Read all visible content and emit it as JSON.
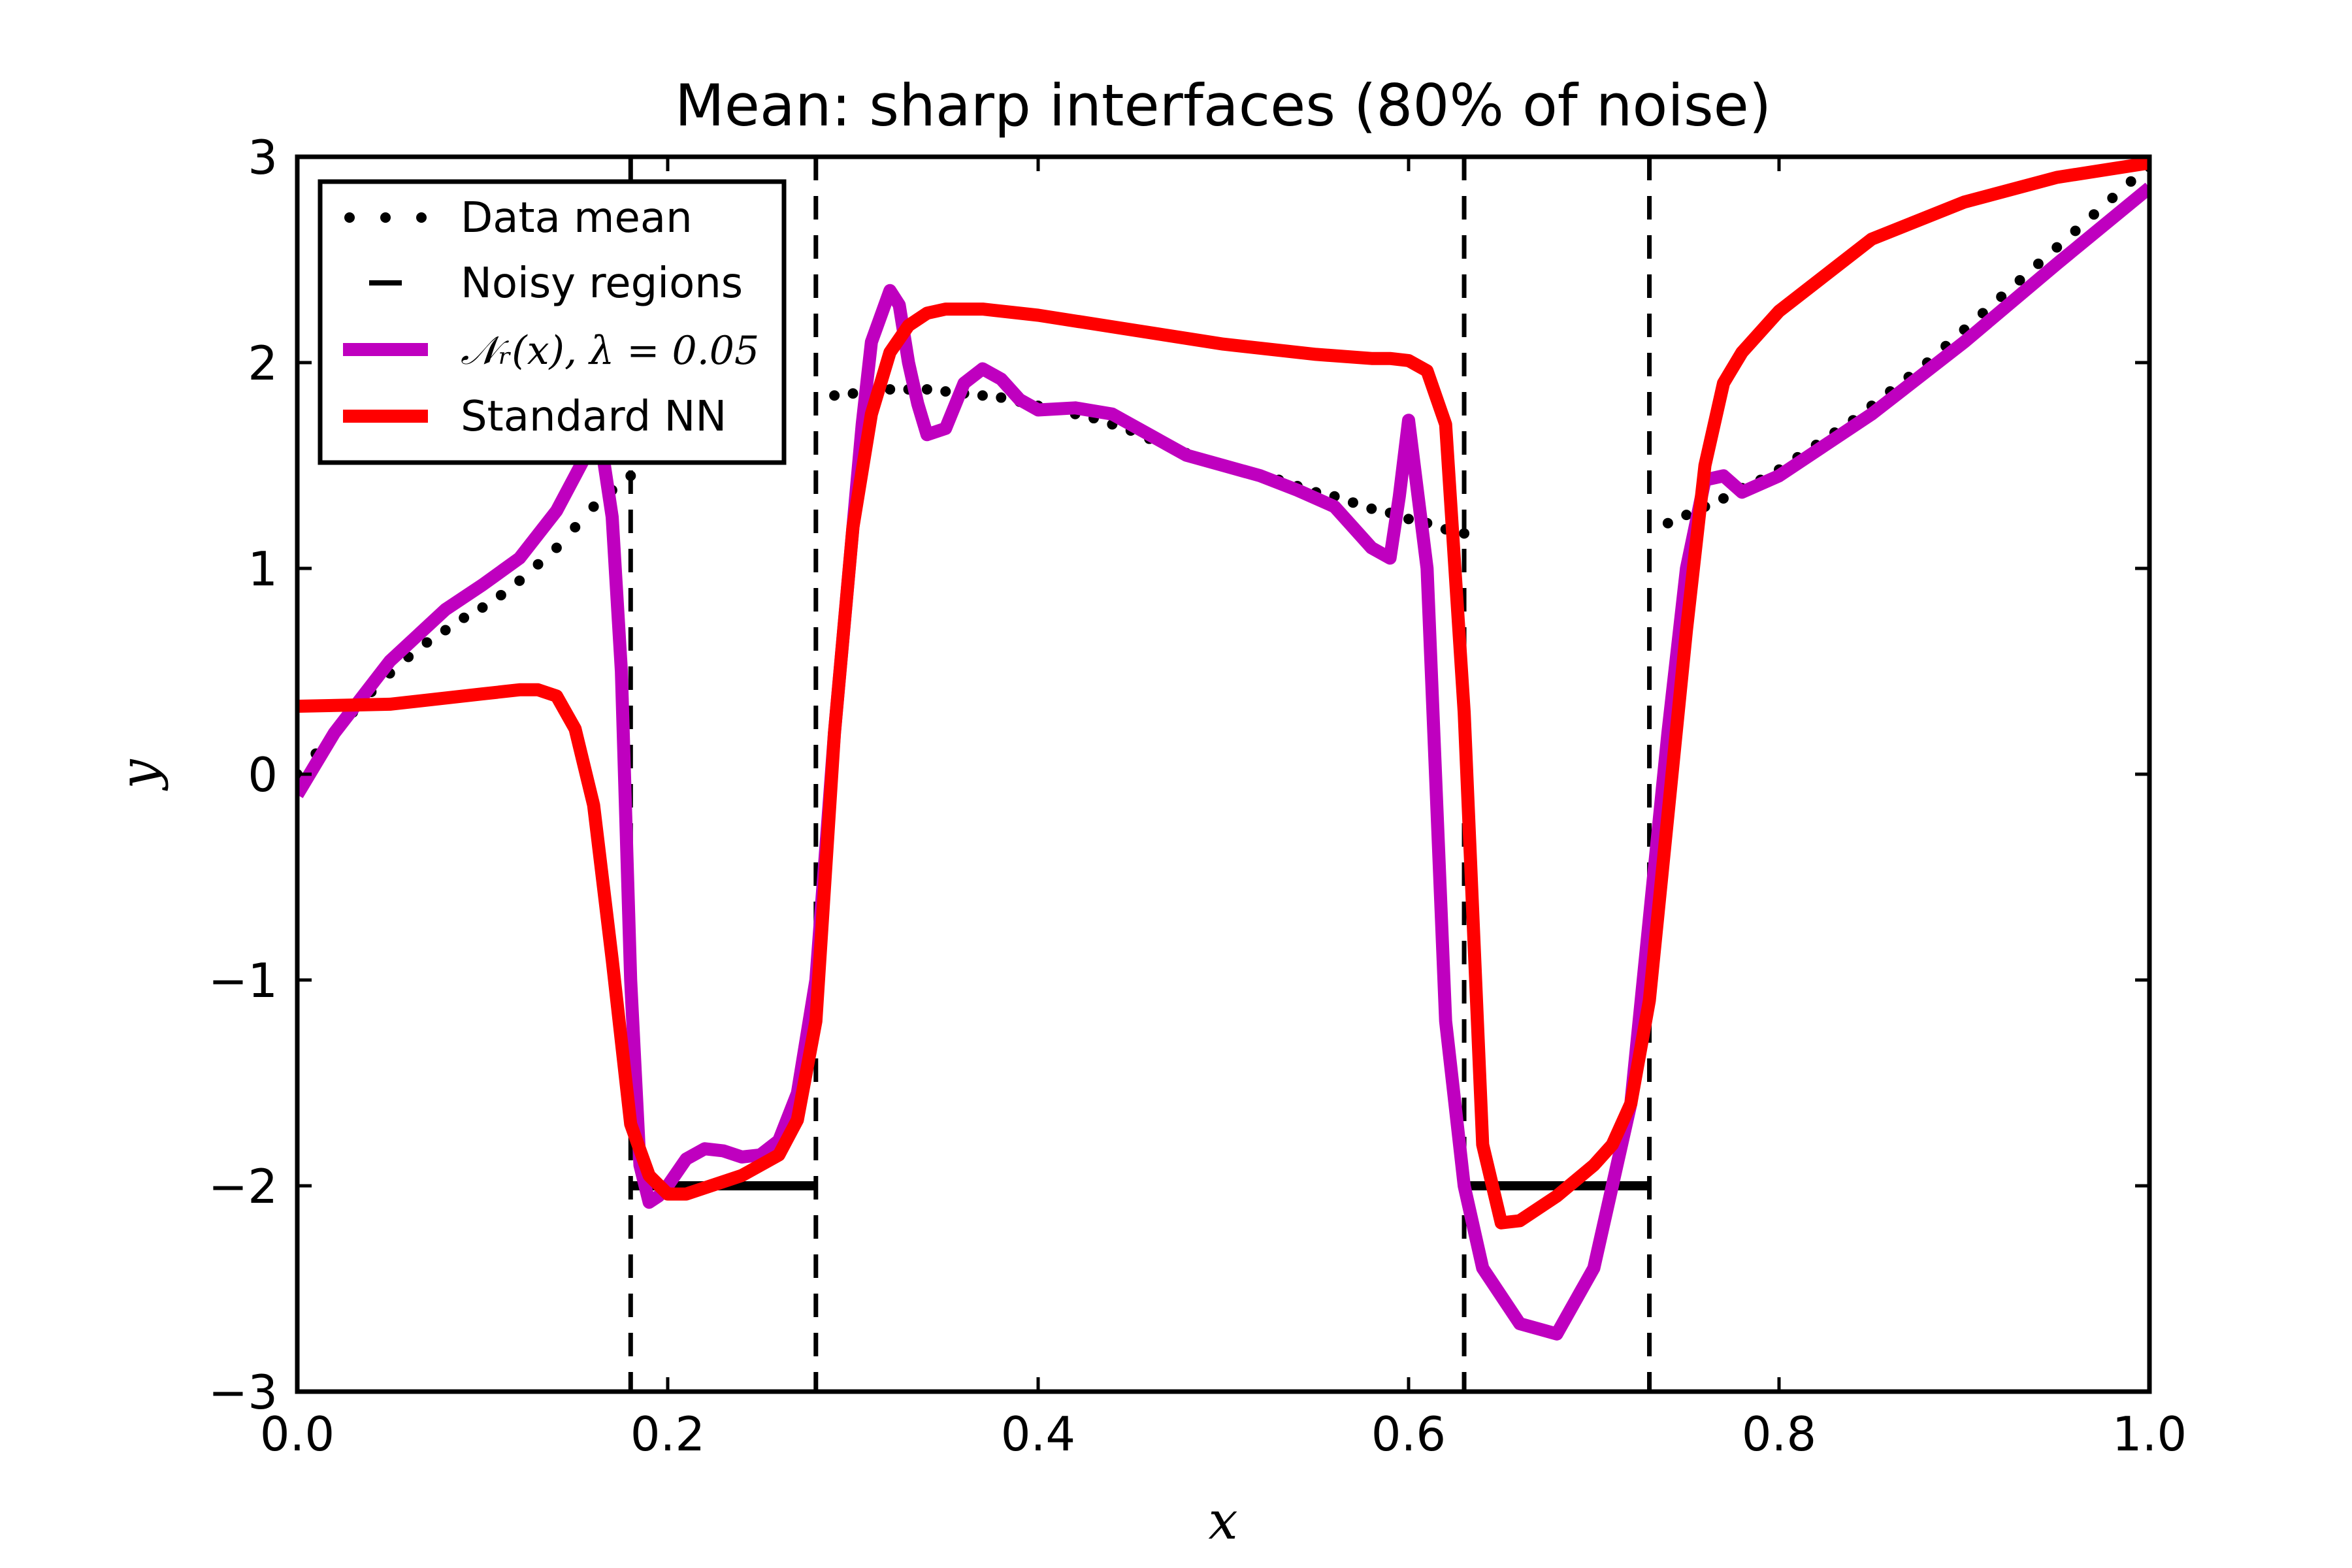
{
  "chart_data": {
    "type": "line",
    "title": "Mean: sharp interfaces (80% of noise)",
    "xlabel": "x",
    "ylabel": "y",
    "xlim": [
      0.0,
      1.0
    ],
    "ylim": [
      -3,
      3
    ],
    "xticks": [
      0.0,
      0.2,
      0.4,
      0.6,
      0.8,
      1.0
    ],
    "xtick_labels": [
      "0.0",
      "0.2",
      "0.4",
      "0.6",
      "0.8",
      "1.0"
    ],
    "yticks": [
      -3,
      -2,
      -1,
      0,
      1,
      2,
      3
    ],
    "ytick_labels": [
      "−3",
      "−2",
      "−1",
      "0",
      "1",
      "2",
      "3"
    ],
    "legend_position": "top-left",
    "noisy_boundaries": [
      0.18,
      0.28,
      0.63,
      0.73
    ],
    "series": [
      {
        "name": "Data mean",
        "legend_label": "Data mean",
        "style": "dots",
        "color": "#000000",
        "segments": [
          {
            "x": [
              0.0,
              0.01,
              0.02,
              0.03,
              0.04,
              0.05,
              0.06,
              0.07,
              0.08,
              0.09,
              0.1,
              0.11,
              0.12,
              0.13,
              0.14,
              0.15,
              0.16,
              0.17,
              0.18
            ],
            "y": [
              0.0,
              0.1,
              0.2,
              0.3,
              0.4,
              0.49,
              0.57,
              0.64,
              0.7,
              0.76,
              0.81,
              0.87,
              0.94,
              1.02,
              1.1,
              1.2,
              1.3,
              1.38,
              1.45
            ]
          },
          {
            "x": [
              0.29,
              0.3,
              0.31,
              0.32,
              0.33,
              0.34,
              0.35,
              0.36,
              0.37,
              0.38,
              0.39,
              0.4,
              0.41,
              0.42,
              0.43,
              0.44,
              0.45,
              0.46,
              0.47,
              0.48,
              0.49,
              0.5,
              0.51,
              0.52,
              0.53,
              0.54,
              0.55,
              0.56,
              0.57,
              0.58,
              0.59,
              0.6,
              0.61,
              0.62,
              0.63
            ],
            "y": [
              1.84,
              1.85,
              1.86,
              1.87,
              1.87,
              1.87,
              1.86,
              1.85,
              1.84,
              1.83,
              1.81,
              1.79,
              1.77,
              1.75,
              1.73,
              1.7,
              1.67,
              1.63,
              1.6,
              1.56,
              1.53,
              1.5,
              1.47,
              1.45,
              1.43,
              1.4,
              1.37,
              1.35,
              1.32,
              1.29,
              1.27,
              1.24,
              1.22,
              1.19,
              1.17
            ]
          },
          {
            "x": [
              0.74,
              0.75,
              0.76,
              0.77,
              0.78,
              0.79,
              0.8,
              0.81,
              0.82,
              0.83,
              0.84,
              0.85,
              0.86,
              0.87,
              0.88,
              0.89,
              0.9,
              0.91,
              0.92,
              0.93,
              0.94,
              0.95,
              0.96,
              0.97,
              0.98,
              0.99,
              1.0
            ],
            "y": [
              1.22,
              1.26,
              1.3,
              1.34,
              1.39,
              1.43,
              1.48,
              1.54,
              1.6,
              1.66,
              1.72,
              1.79,
              1.86,
              1.93,
              2.0,
              2.08,
              2.16,
              2.24,
              2.32,
              2.4,
              2.48,
              2.56,
              2.64,
              2.72,
              2.8,
              2.88,
              2.95
            ]
          }
        ]
      },
      {
        "name": "Noisy regions",
        "legend_label": "Noisy regions",
        "style": "solid-thick",
        "color": "#000000",
        "segments": [
          {
            "x": [
              0.18,
              0.28
            ],
            "y": [
              -2,
              -2
            ]
          },
          {
            "x": [
              0.63,
              0.73
            ],
            "y": [
              -2,
              -2
            ]
          }
        ]
      },
      {
        "name": "N_r(x), lambda=0.05",
        "legend_label": "𝒩ᵣ(x),  λ = 0.05",
        "style": "line",
        "color": "#bf00bf",
        "x": [
          0.0,
          0.02,
          0.05,
          0.08,
          0.1,
          0.12,
          0.14,
          0.15,
          0.16,
          0.165,
          0.17,
          0.175,
          0.18,
          0.185,
          0.19,
          0.195,
          0.2,
          0.21,
          0.22,
          0.23,
          0.24,
          0.25,
          0.26,
          0.27,
          0.28,
          0.29,
          0.3,
          0.305,
          0.31,
          0.32,
          0.325,
          0.33,
          0.335,
          0.34,
          0.35,
          0.36,
          0.37,
          0.38,
          0.39,
          0.4,
          0.42,
          0.44,
          0.46,
          0.48,
          0.5,
          0.52,
          0.54,
          0.56,
          0.58,
          0.59,
          0.595,
          0.6,
          0.61,
          0.62,
          0.63,
          0.64,
          0.66,
          0.68,
          0.7,
          0.72,
          0.74,
          0.75,
          0.76,
          0.77,
          0.78,
          0.8,
          0.85,
          0.9,
          0.95,
          1.0
        ],
        "y": [
          -0.1,
          0.2,
          0.55,
          0.8,
          0.92,
          1.05,
          1.28,
          1.45,
          1.62,
          1.55,
          1.25,
          0.5,
          -1.0,
          -1.9,
          -2.08,
          -2.05,
          -2.0,
          -1.87,
          -1.82,
          -1.83,
          -1.86,
          -1.85,
          -1.78,
          -1.55,
          -1.0,
          0.2,
          1.2,
          1.7,
          2.1,
          2.35,
          2.28,
          2.0,
          1.8,
          1.65,
          1.68,
          1.9,
          1.97,
          1.92,
          1.82,
          1.77,
          1.78,
          1.75,
          1.65,
          1.55,
          1.5,
          1.45,
          1.38,
          1.3,
          1.1,
          1.05,
          1.35,
          1.72,
          1.0,
          -1.2,
          -2.0,
          -2.4,
          -2.67,
          -2.72,
          -2.4,
          -1.6,
          0.2,
          1.0,
          1.43,
          1.45,
          1.37,
          1.45,
          1.75,
          2.1,
          2.48,
          2.85
        ]
      },
      {
        "name": "Standard NN",
        "legend_label": "Standard NN",
        "style": "line",
        "color": "#ff0000",
        "x": [
          0.0,
          0.05,
          0.1,
          0.12,
          0.13,
          0.14,
          0.15,
          0.16,
          0.17,
          0.18,
          0.19,
          0.2,
          0.21,
          0.22,
          0.24,
          0.26,
          0.27,
          0.28,
          0.285,
          0.29,
          0.3,
          0.31,
          0.32,
          0.33,
          0.34,
          0.35,
          0.37,
          0.4,
          0.45,
          0.5,
          0.55,
          0.58,
          0.59,
          0.6,
          0.61,
          0.62,
          0.63,
          0.64,
          0.65,
          0.66,
          0.68,
          0.7,
          0.71,
          0.72,
          0.73,
          0.74,
          0.75,
          0.76,
          0.77,
          0.78,
          0.8,
          0.85,
          0.9,
          0.95,
          1.0
        ],
        "y": [
          0.33,
          0.34,
          0.39,
          0.41,
          0.41,
          0.38,
          0.22,
          -0.15,
          -0.9,
          -1.7,
          -1.95,
          -2.04,
          -2.04,
          -2.01,
          -1.95,
          -1.85,
          -1.68,
          -1.2,
          -0.5,
          0.2,
          1.2,
          1.75,
          2.05,
          2.18,
          2.24,
          2.26,
          2.26,
          2.23,
          2.16,
          2.09,
          2.04,
          2.02,
          2.02,
          2.01,
          1.96,
          1.7,
          0.3,
          -1.8,
          -2.18,
          -2.17,
          -2.05,
          -1.9,
          -1.8,
          -1.6,
          -1.1,
          -0.2,
          0.7,
          1.5,
          1.9,
          2.05,
          2.25,
          2.6,
          2.78,
          2.9,
          2.97
        ]
      }
    ]
  }
}
